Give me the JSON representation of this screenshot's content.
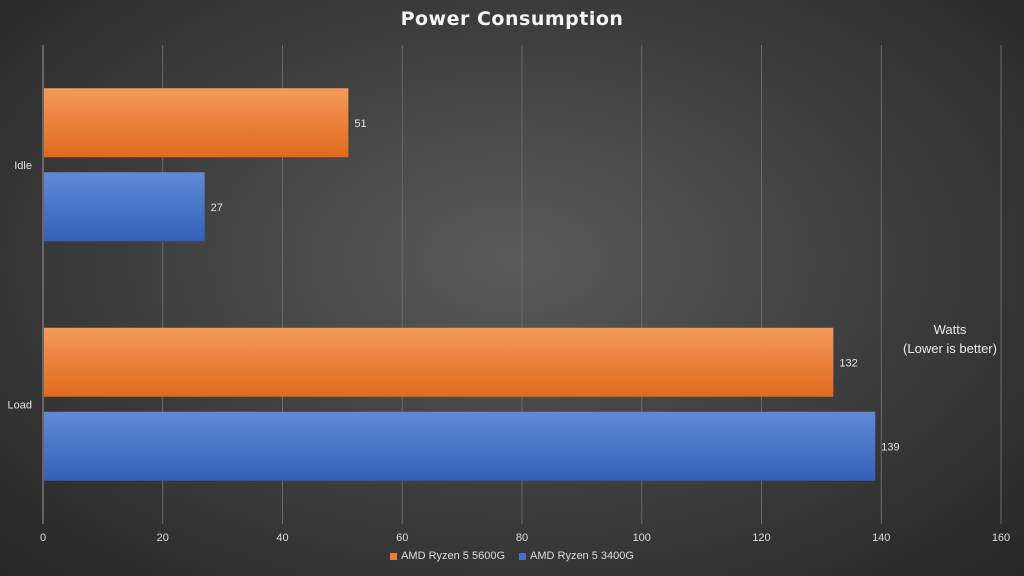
{
  "chart_data": {
    "type": "bar",
    "orientation": "horizontal",
    "title": "Power Consumption",
    "annotation": [
      "Watts",
      "(Lower is better)"
    ],
    "categories": [
      "Idle",
      "Load"
    ],
    "series": [
      {
        "name": "AMD Ryzen 5 5600G",
        "color": "#ed7d31",
        "values": [
          51,
          132
        ]
      },
      {
        "name": "AMD Ryzen 5 3400G",
        "color": "#4472c4",
        "values": [
          27,
          139
        ]
      }
    ],
    "xlim": [
      0,
      160
    ],
    "xticks": [
      0,
      20,
      40,
      60,
      80,
      100,
      120,
      140,
      160
    ],
    "grid": true,
    "legend_position": "bottom"
  }
}
